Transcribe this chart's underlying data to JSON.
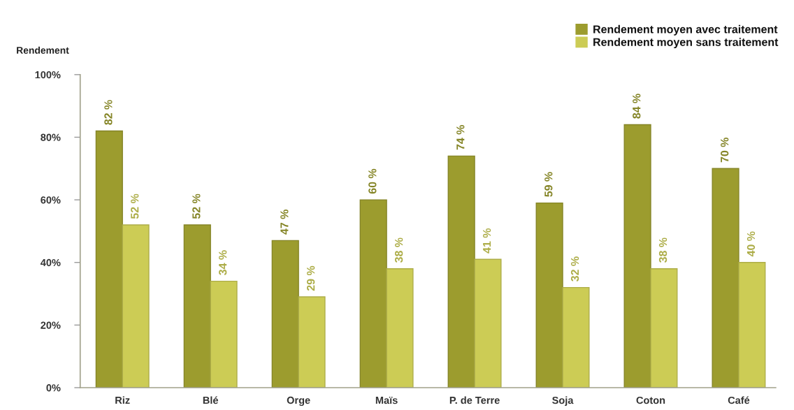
{
  "chart_data": {
    "type": "bar",
    "ylabel": "Rendement",
    "categories": [
      "Riz",
      "Blé",
      "Orge",
      "Maïs",
      "P. de Terre",
      "Soja",
      "Coton",
      "Café"
    ],
    "series": [
      {
        "name": "Rendement moyen avec traitement",
        "color": "#9c9c2e",
        "values": [
          82,
          52,
          47,
          60,
          74,
          59,
          84,
          70
        ],
        "value_labels": [
          "82 %",
          "52 %",
          "47 %",
          "60 %",
          "74 %",
          "59 %",
          "84 %",
          "70 %"
        ]
      },
      {
        "name": "Rendement moyen sans traitement",
        "color": "#cccc55",
        "values": [
          52,
          34,
          29,
          38,
          41,
          32,
          38,
          40
        ],
        "value_labels": [
          "52 %",
          "34 %",
          "29 %",
          "38 %",
          "41 %",
          "32 %",
          "38 %",
          "40 %"
        ]
      }
    ],
    "ylim": [
      0,
      100
    ],
    "yticks": [
      {
        "value": 0,
        "label": "0%"
      },
      {
        "value": 20,
        "label": "20%"
      },
      {
        "value": 40,
        "label": "40%"
      },
      {
        "value": 60,
        "label": "60%"
      },
      {
        "value": 80,
        "label": "80%"
      },
      {
        "value": 100,
        "label": "100%"
      }
    ],
    "legend": "top right"
  }
}
